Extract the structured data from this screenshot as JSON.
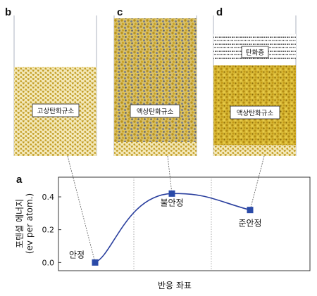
{
  "panels": {
    "b": {
      "letter": "b",
      "label": "고상탄화규소"
    },
    "c": {
      "letter": "c",
      "label": "액상탄화규소"
    },
    "d": {
      "letter": "d",
      "label": "액상탄화규소",
      "layer_label": "탄화층"
    }
  },
  "chart_data": {
    "type": "line",
    "panel_letter": "a",
    "xlabel": "반응 좌표",
    "ylabel_line1": "포텐셜 에너지",
    "ylabel_line2": "(ev per atom.)",
    "ylim": [
      -0.05,
      0.52
    ],
    "yticks": [
      {
        "value": 0.0,
        "label": "0.0"
      },
      {
        "value": 0.2,
        "label": "0.2"
      },
      {
        "value": 0.4,
        "label": "0.4"
      }
    ],
    "x": [
      0,
      1,
      2
    ],
    "points": [
      {
        "x": 0,
        "y": 0.0,
        "label": "안정"
      },
      {
        "x": 1,
        "y": 0.42,
        "label": "불안정"
      },
      {
        "x": 2,
        "y": 0.32,
        "label": "준안정"
      }
    ],
    "grid": "vertical-dotted",
    "colors": {
      "line": "#2a3f9e",
      "marker": "#2a4aa8"
    }
  }
}
